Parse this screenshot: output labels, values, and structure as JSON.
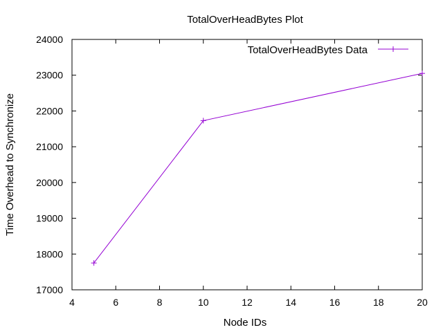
{
  "chart_data": {
    "type": "line",
    "title": "TotalOverHeadBytes Plot",
    "xlabel": "Node IDs",
    "ylabel": "Time Overhead to Synchronize",
    "xlim": [
      4,
      20
    ],
    "ylim": [
      17000,
      24000
    ],
    "xticks": [
      4,
      6,
      8,
      10,
      12,
      14,
      16,
      18,
      20
    ],
    "yticks": [
      17000,
      18000,
      19000,
      20000,
      21000,
      22000,
      23000,
      24000
    ],
    "grid": false,
    "legend_position": "top-right",
    "series": [
      {
        "name": "TotalOverHeadBytes Data",
        "color": "#9400d3",
        "marker": "plus",
        "x": [
          5,
          10,
          20
        ],
        "y": [
          17750,
          21730,
          23050
        ]
      }
    ]
  }
}
